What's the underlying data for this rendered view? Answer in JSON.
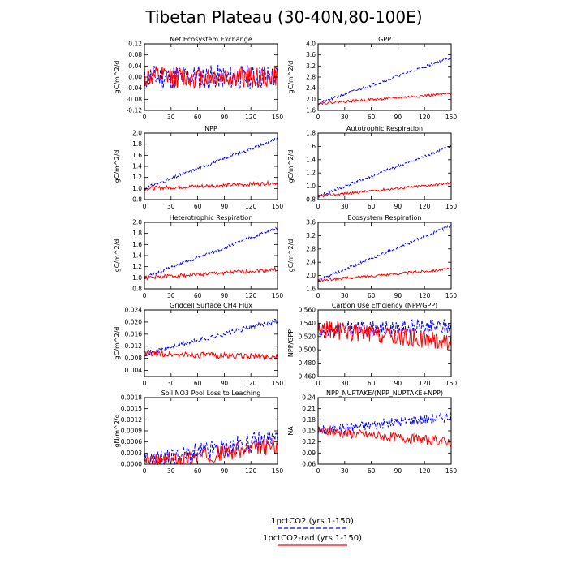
{
  "figure": {
    "title": "Tibetan Plateau (30-40N,80-100E)"
  },
  "legend": [
    {
      "label": "1pctCO2 (yrs 1-150)",
      "color": "#0000ff",
      "dash": true
    },
    {
      "label": "1pctCO2-rad (yrs 1-150)",
      "color": "#ff0000",
      "dash": false
    }
  ],
  "chart_data": [
    {
      "type": "line",
      "title": "Net Ecosystem Exchange",
      "ylabel": "gC/m^2/d",
      "xlim": [
        0,
        150
      ],
      "ylim": [
        -0.12,
        0.12
      ],
      "xticks": [
        0,
        30,
        60,
        90,
        120,
        150
      ],
      "yticks": [
        "-0.12",
        "-0.08",
        "-0.04",
        "0.00",
        "0.04",
        "0.08",
        "0.12"
      ],
      "series": [
        {
          "name": "1pctCO2 (yrs 1-150)",
          "color": "#0000ff",
          "dash": true,
          "start": 0.0,
          "end": 0.0,
          "noise": 0.045,
          "seed": 11
        },
        {
          "name": "1pctCO2-rad (yrs 1-150)",
          "color": "#ff0000",
          "dash": false,
          "start": 0.0,
          "end": 0.0,
          "noise": 0.04,
          "seed": 12
        }
      ]
    },
    {
      "type": "line",
      "title": "GPP",
      "ylabel": "gC/m^2/d",
      "xlim": [
        0,
        150
      ],
      "ylim": [
        1.6,
        4.0
      ],
      "xticks": [
        0,
        30,
        60,
        90,
        120,
        150
      ],
      "yticks": [
        "1.6",
        "2.0",
        "2.4",
        "2.8",
        "3.2",
        "3.6",
        "4.0"
      ],
      "series": [
        {
          "name": "1pctCO2 (yrs 1-150)",
          "color": "#0000ff",
          "dash": true,
          "start": 1.85,
          "end": 3.5,
          "noise": 0.05,
          "seed": 21
        },
        {
          "name": "1pctCO2-rad (yrs 1-150)",
          "color": "#ff0000",
          "dash": false,
          "start": 1.85,
          "end": 2.2,
          "noise": 0.045,
          "seed": 22
        }
      ]
    },
    {
      "type": "line",
      "title": "NPP",
      "ylabel": "gC/m^2/d",
      "xlim": [
        0,
        150
      ],
      "ylim": [
        0.8,
        2.0
      ],
      "xticks": [
        0,
        30,
        60,
        90,
        120,
        150
      ],
      "yticks": [
        "0.8",
        "1.0",
        "1.2",
        "1.4",
        "1.6",
        "1.8",
        "2.0"
      ],
      "series": [
        {
          "name": "1pctCO2 (yrs 1-150)",
          "color": "#0000ff",
          "dash": true,
          "start": 1.0,
          "end": 1.9,
          "noise": 0.03,
          "seed": 31
        },
        {
          "name": "1pctCO2-rad (yrs 1-150)",
          "color": "#ff0000",
          "dash": false,
          "start": 1.0,
          "end": 1.1,
          "noise": 0.035,
          "seed": 32
        }
      ]
    },
    {
      "type": "line",
      "title": "Autotrophic Respiration",
      "ylabel": "gC/m^2/d",
      "xlim": [
        0,
        150
      ],
      "ylim": [
        0.8,
        1.8
      ],
      "xticks": [
        0,
        30,
        60,
        90,
        120,
        150
      ],
      "yticks": [
        "0.8",
        "1.0",
        "1.2",
        "1.4",
        "1.6",
        "1.8"
      ],
      "series": [
        {
          "name": "1pctCO2 (yrs 1-150)",
          "color": "#0000ff",
          "dash": true,
          "start": 0.85,
          "end": 1.6,
          "noise": 0.025,
          "seed": 41
        },
        {
          "name": "1pctCO2-rad (yrs 1-150)",
          "color": "#ff0000",
          "dash": false,
          "start": 0.85,
          "end": 1.05,
          "noise": 0.02,
          "seed": 42
        }
      ]
    },
    {
      "type": "line",
      "title": "Heterotrophic Respiration",
      "ylabel": "gC/m^2/d",
      "xlim": [
        0,
        150
      ],
      "ylim": [
        0.8,
        2.0
      ],
      "xticks": [
        0,
        30,
        60,
        90,
        120,
        150
      ],
      "yticks": [
        "0.8",
        "1.0",
        "1.2",
        "1.4",
        "1.6",
        "1.8",
        "2.0"
      ],
      "series": [
        {
          "name": "1pctCO2 (yrs 1-150)",
          "color": "#0000ff",
          "dash": true,
          "start": 1.0,
          "end": 1.9,
          "noise": 0.03,
          "seed": 51
        },
        {
          "name": "1pctCO2-rad (yrs 1-150)",
          "color": "#ff0000",
          "dash": false,
          "start": 1.0,
          "end": 1.15,
          "noise": 0.035,
          "seed": 52
        }
      ]
    },
    {
      "type": "line",
      "title": "Ecosystem Respiration",
      "ylabel": "gC/m^2/d",
      "xlim": [
        0,
        150
      ],
      "ylim": [
        1.6,
        3.6
      ],
      "xticks": [
        0,
        30,
        60,
        90,
        120,
        150
      ],
      "yticks": [
        "1.6",
        "2.0",
        "2.4",
        "2.8",
        "3.2",
        "3.6"
      ],
      "series": [
        {
          "name": "1pctCO2 (yrs 1-150)",
          "color": "#0000ff",
          "dash": true,
          "start": 1.85,
          "end": 3.5,
          "noise": 0.045,
          "seed": 61
        },
        {
          "name": "1pctCO2-rad (yrs 1-150)",
          "color": "#ff0000",
          "dash": false,
          "start": 1.85,
          "end": 2.2,
          "noise": 0.04,
          "seed": 62
        }
      ]
    },
    {
      "type": "line",
      "title": "Gridcell Surface CH4 Flux",
      "ylabel": "gC/m^2/d",
      "xlim": [
        0,
        150
      ],
      "ylim": [
        0.002,
        0.024
      ],
      "xticks": [
        0,
        30,
        60,
        90,
        120,
        150
      ],
      "yticks": [
        "0.004",
        "0.008",
        "0.012",
        "0.016",
        "0.020",
        "0.024"
      ],
      "series": [
        {
          "name": "1pctCO2 (yrs 1-150)",
          "color": "#0000ff",
          "dash": true,
          "start": 0.0095,
          "end": 0.0205,
          "noise": 0.0008,
          "seed": 71
        },
        {
          "name": "1pctCO2-rad (yrs 1-150)",
          "color": "#ff0000",
          "dash": false,
          "start": 0.0095,
          "end": 0.0085,
          "noise": 0.001,
          "seed": 72
        }
      ]
    },
    {
      "type": "line",
      "title": "Carbon Use Efficiency (NPP/GPP)",
      "ylabel": "NPP/GPP",
      "xlim": [
        0,
        150
      ],
      "ylim": [
        0.46,
        0.56
      ],
      "xticks": [
        0,
        30,
        60,
        90,
        120,
        150
      ],
      "yticks": [
        "0.460",
        "0.480",
        "0.500",
        "0.520",
        "0.540",
        "0.560"
      ],
      "series": [
        {
          "name": "1pctCO2 (yrs 1-150)",
          "color": "#0000ff",
          "dash": true,
          "start": 0.53,
          "end": 0.535,
          "noise": 0.012,
          "seed": 81
        },
        {
          "name": "1pctCO2-rad (yrs 1-150)",
          "color": "#ff0000",
          "dash": false,
          "start": 0.532,
          "end": 0.512,
          "noise": 0.014,
          "seed": 82
        }
      ]
    },
    {
      "type": "line",
      "title": "Soil NO3 Pool Loss to Leaching",
      "ylabel": "gN/m^2/d",
      "xlim": [
        0,
        150
      ],
      "ylim": [
        0.0,
        0.0018
      ],
      "xticks": [
        0,
        30,
        60,
        90,
        120,
        150
      ],
      "yticks": [
        "0.0000",
        "0.0003",
        "0.0006",
        "0.0009",
        "0.0012",
        "0.0015",
        "0.0018"
      ],
      "series": [
        {
          "name": "1pctCO2 (yrs 1-150)",
          "color": "#0000ff",
          "dash": true,
          "start": 2e-05,
          "end": 0.0007,
          "noise": 0.00028,
          "seed": 91,
          "positive": true
        },
        {
          "name": "1pctCO2-rad (yrs 1-150)",
          "color": "#ff0000",
          "dash": false,
          "start": 2e-05,
          "end": 0.0005,
          "noise": 0.00022,
          "seed": 92,
          "positive": true
        }
      ]
    },
    {
      "type": "line",
      "title": "NPP_NUPTAKE/(NPP_NUPTAKE+NPP)",
      "ylabel": "NA",
      "xlim": [
        0,
        150
      ],
      "ylim": [
        0.06,
        0.24
      ],
      "xticks": [
        0,
        30,
        60,
        90,
        120,
        150
      ],
      "yticks": [
        "0.06",
        "0.09",
        "0.12",
        "0.15",
        "0.18",
        "0.21",
        "0.24"
      ],
      "series": [
        {
          "name": "1pctCO2 (yrs 1-150)",
          "color": "#0000ff",
          "dash": true,
          "start": 0.15,
          "end": 0.19,
          "noise": 0.014,
          "seed": 101
        },
        {
          "name": "1pctCO2-rad (yrs 1-150)",
          "color": "#ff0000",
          "dash": false,
          "start": 0.15,
          "end": 0.12,
          "noise": 0.013,
          "seed": 102
        }
      ]
    }
  ]
}
